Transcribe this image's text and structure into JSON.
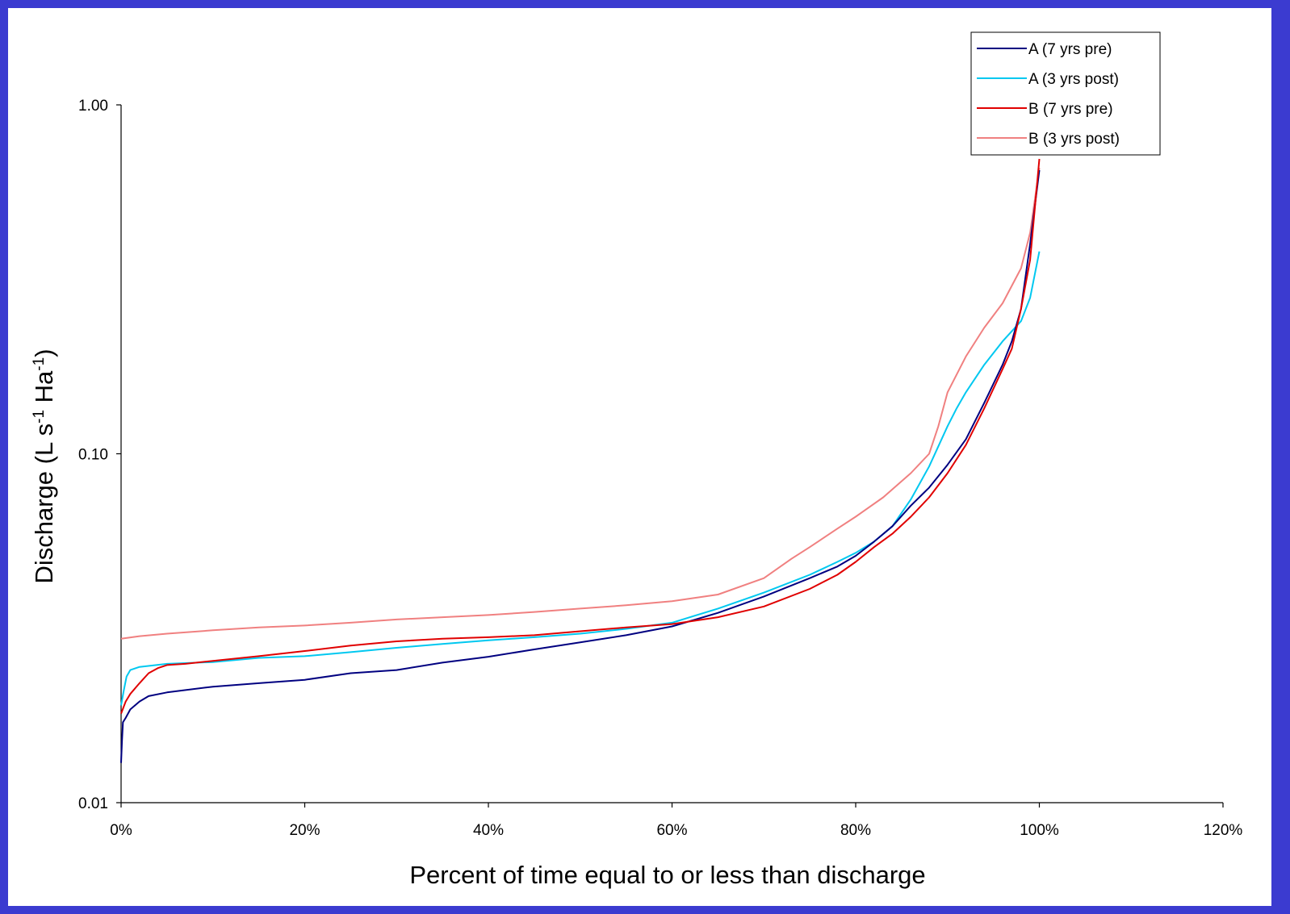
{
  "chart_data": {
    "type": "line",
    "xlabel": "Percent of time equal to or less than discharge",
    "ylabel": "Discharge (L s-1 Ha-1)",
    "ylabel_parts": {
      "prefix": "Discharge (L s",
      "sup1": "-1",
      "mid": " Ha",
      "sup2": "-1",
      "suffix": ")"
    },
    "y_scale": "log",
    "xlim": [
      0,
      120
    ],
    "ylim": [
      0.01,
      1.0
    ],
    "x_ticks": [
      0,
      20,
      40,
      60,
      80,
      100,
      120
    ],
    "x_tick_labels": [
      "0%",
      "20%",
      "40%",
      "60%",
      "80%",
      "100%",
      "120%"
    ],
    "y_ticks": [
      0.01,
      0.1,
      1.0
    ],
    "y_tick_labels": [
      "0.01",
      "0.10",
      "1.00"
    ],
    "grid": false,
    "legend_position": "top-right",
    "series": [
      {
        "name": "A (7 yrs pre)",
        "color": "#000080",
        "points": [
          [
            0,
            0.013
          ],
          [
            0.1,
            0.015
          ],
          [
            0.2,
            0.017
          ],
          [
            0.5,
            0.0175
          ],
          [
            1,
            0.0185
          ],
          [
            2,
            0.0195
          ],
          [
            3,
            0.0202
          ],
          [
            5,
            0.0207
          ],
          [
            10,
            0.0215
          ],
          [
            15,
            0.022
          ],
          [
            20,
            0.0225
          ],
          [
            25,
            0.0235
          ],
          [
            30,
            0.024
          ],
          [
            35,
            0.0252
          ],
          [
            40,
            0.0262
          ],
          [
            45,
            0.0275
          ],
          [
            50,
            0.0288
          ],
          [
            55,
            0.0302
          ],
          [
            60,
            0.032
          ],
          [
            65,
            0.035
          ],
          [
            70,
            0.039
          ],
          [
            75,
            0.044
          ],
          [
            78,
            0.0475
          ],
          [
            80,
            0.051
          ],
          [
            82,
            0.056
          ],
          [
            84,
            0.062
          ],
          [
            86,
            0.071
          ],
          [
            88,
            0.08
          ],
          [
            90,
            0.093
          ],
          [
            92,
            0.11
          ],
          [
            94,
            0.14
          ],
          [
            96,
            0.18
          ],
          [
            97,
            0.21
          ],
          [
            98,
            0.26
          ],
          [
            99,
            0.4
          ],
          [
            100,
            0.65
          ]
        ]
      },
      {
        "name": "A (3 yrs post)",
        "color": "#00c8f0",
        "points": [
          [
            0,
            0.019
          ],
          [
            0.3,
            0.021
          ],
          [
            0.6,
            0.023
          ],
          [
            1,
            0.024
          ],
          [
            2,
            0.0245
          ],
          [
            5,
            0.025
          ],
          [
            10,
            0.0253
          ],
          [
            15,
            0.026
          ],
          [
            20,
            0.0263
          ],
          [
            25,
            0.027
          ],
          [
            30,
            0.0278
          ],
          [
            35,
            0.0285
          ],
          [
            40,
            0.0292
          ],
          [
            45,
            0.0298
          ],
          [
            50,
            0.0305
          ],
          [
            55,
            0.0315
          ],
          [
            60,
            0.0328
          ],
          [
            65,
            0.036
          ],
          [
            70,
            0.04
          ],
          [
            75,
            0.045
          ],
          [
            78,
            0.049
          ],
          [
            80,
            0.052
          ],
          [
            82,
            0.056
          ],
          [
            84,
            0.062
          ],
          [
            86,
            0.074
          ],
          [
            88,
            0.092
          ],
          [
            90,
            0.12
          ],
          [
            91,
            0.135
          ],
          [
            92,
            0.15
          ],
          [
            94,
            0.18
          ],
          [
            96,
            0.21
          ],
          [
            98,
            0.24
          ],
          [
            99,
            0.28
          ],
          [
            100,
            0.38
          ]
        ]
      },
      {
        "name": "B (7 yrs pre)",
        "color": "#e00000",
        "points": [
          [
            0,
            0.018
          ],
          [
            0.5,
            0.0195
          ],
          [
            1,
            0.0205
          ],
          [
            2,
            0.022
          ],
          [
            3,
            0.0235
          ],
          [
            4,
            0.0243
          ],
          [
            5,
            0.0248
          ],
          [
            7,
            0.025
          ],
          [
            10,
            0.0255
          ],
          [
            15,
            0.0263
          ],
          [
            20,
            0.0272
          ],
          [
            25,
            0.0282
          ],
          [
            30,
            0.029
          ],
          [
            35,
            0.0295
          ],
          [
            40,
            0.0298
          ],
          [
            45,
            0.0302
          ],
          [
            50,
            0.031
          ],
          [
            55,
            0.0318
          ],
          [
            60,
            0.0325
          ],
          [
            65,
            0.034
          ],
          [
            70,
            0.0365
          ],
          [
            75,
            0.041
          ],
          [
            78,
            0.045
          ],
          [
            80,
            0.049
          ],
          [
            82,
            0.054
          ],
          [
            84,
            0.059
          ],
          [
            86,
            0.066
          ],
          [
            88,
            0.075
          ],
          [
            90,
            0.088
          ],
          [
            92,
            0.106
          ],
          [
            94,
            0.135
          ],
          [
            96,
            0.175
          ],
          [
            97,
            0.2
          ],
          [
            98,
            0.26
          ],
          [
            99,
            0.36
          ],
          [
            100,
            0.7
          ]
        ]
      },
      {
        "name": "B (3 yrs post)",
        "color": "#f08080",
        "points": [
          [
            0,
            0.0295
          ],
          [
            2,
            0.03
          ],
          [
            5,
            0.0305
          ],
          [
            10,
            0.0312
          ],
          [
            15,
            0.0318
          ],
          [
            20,
            0.0322
          ],
          [
            25,
            0.0328
          ],
          [
            30,
            0.0335
          ],
          [
            35,
            0.034
          ],
          [
            40,
            0.0345
          ],
          [
            45,
            0.0352
          ],
          [
            50,
            0.036
          ],
          [
            55,
            0.0368
          ],
          [
            60,
            0.0378
          ],
          [
            65,
            0.0395
          ],
          [
            70,
            0.044
          ],
          [
            73,
            0.05
          ],
          [
            75,
            0.054
          ],
          [
            78,
            0.061
          ],
          [
            80,
            0.066
          ],
          [
            83,
            0.075
          ],
          [
            86,
            0.088
          ],
          [
            88,
            0.1
          ],
          [
            89,
            0.12
          ],
          [
            90,
            0.15
          ],
          [
            92,
            0.19
          ],
          [
            94,
            0.23
          ],
          [
            96,
            0.27
          ],
          [
            98,
            0.34
          ],
          [
            99,
            0.43
          ],
          [
            100,
            0.66
          ]
        ]
      }
    ]
  }
}
